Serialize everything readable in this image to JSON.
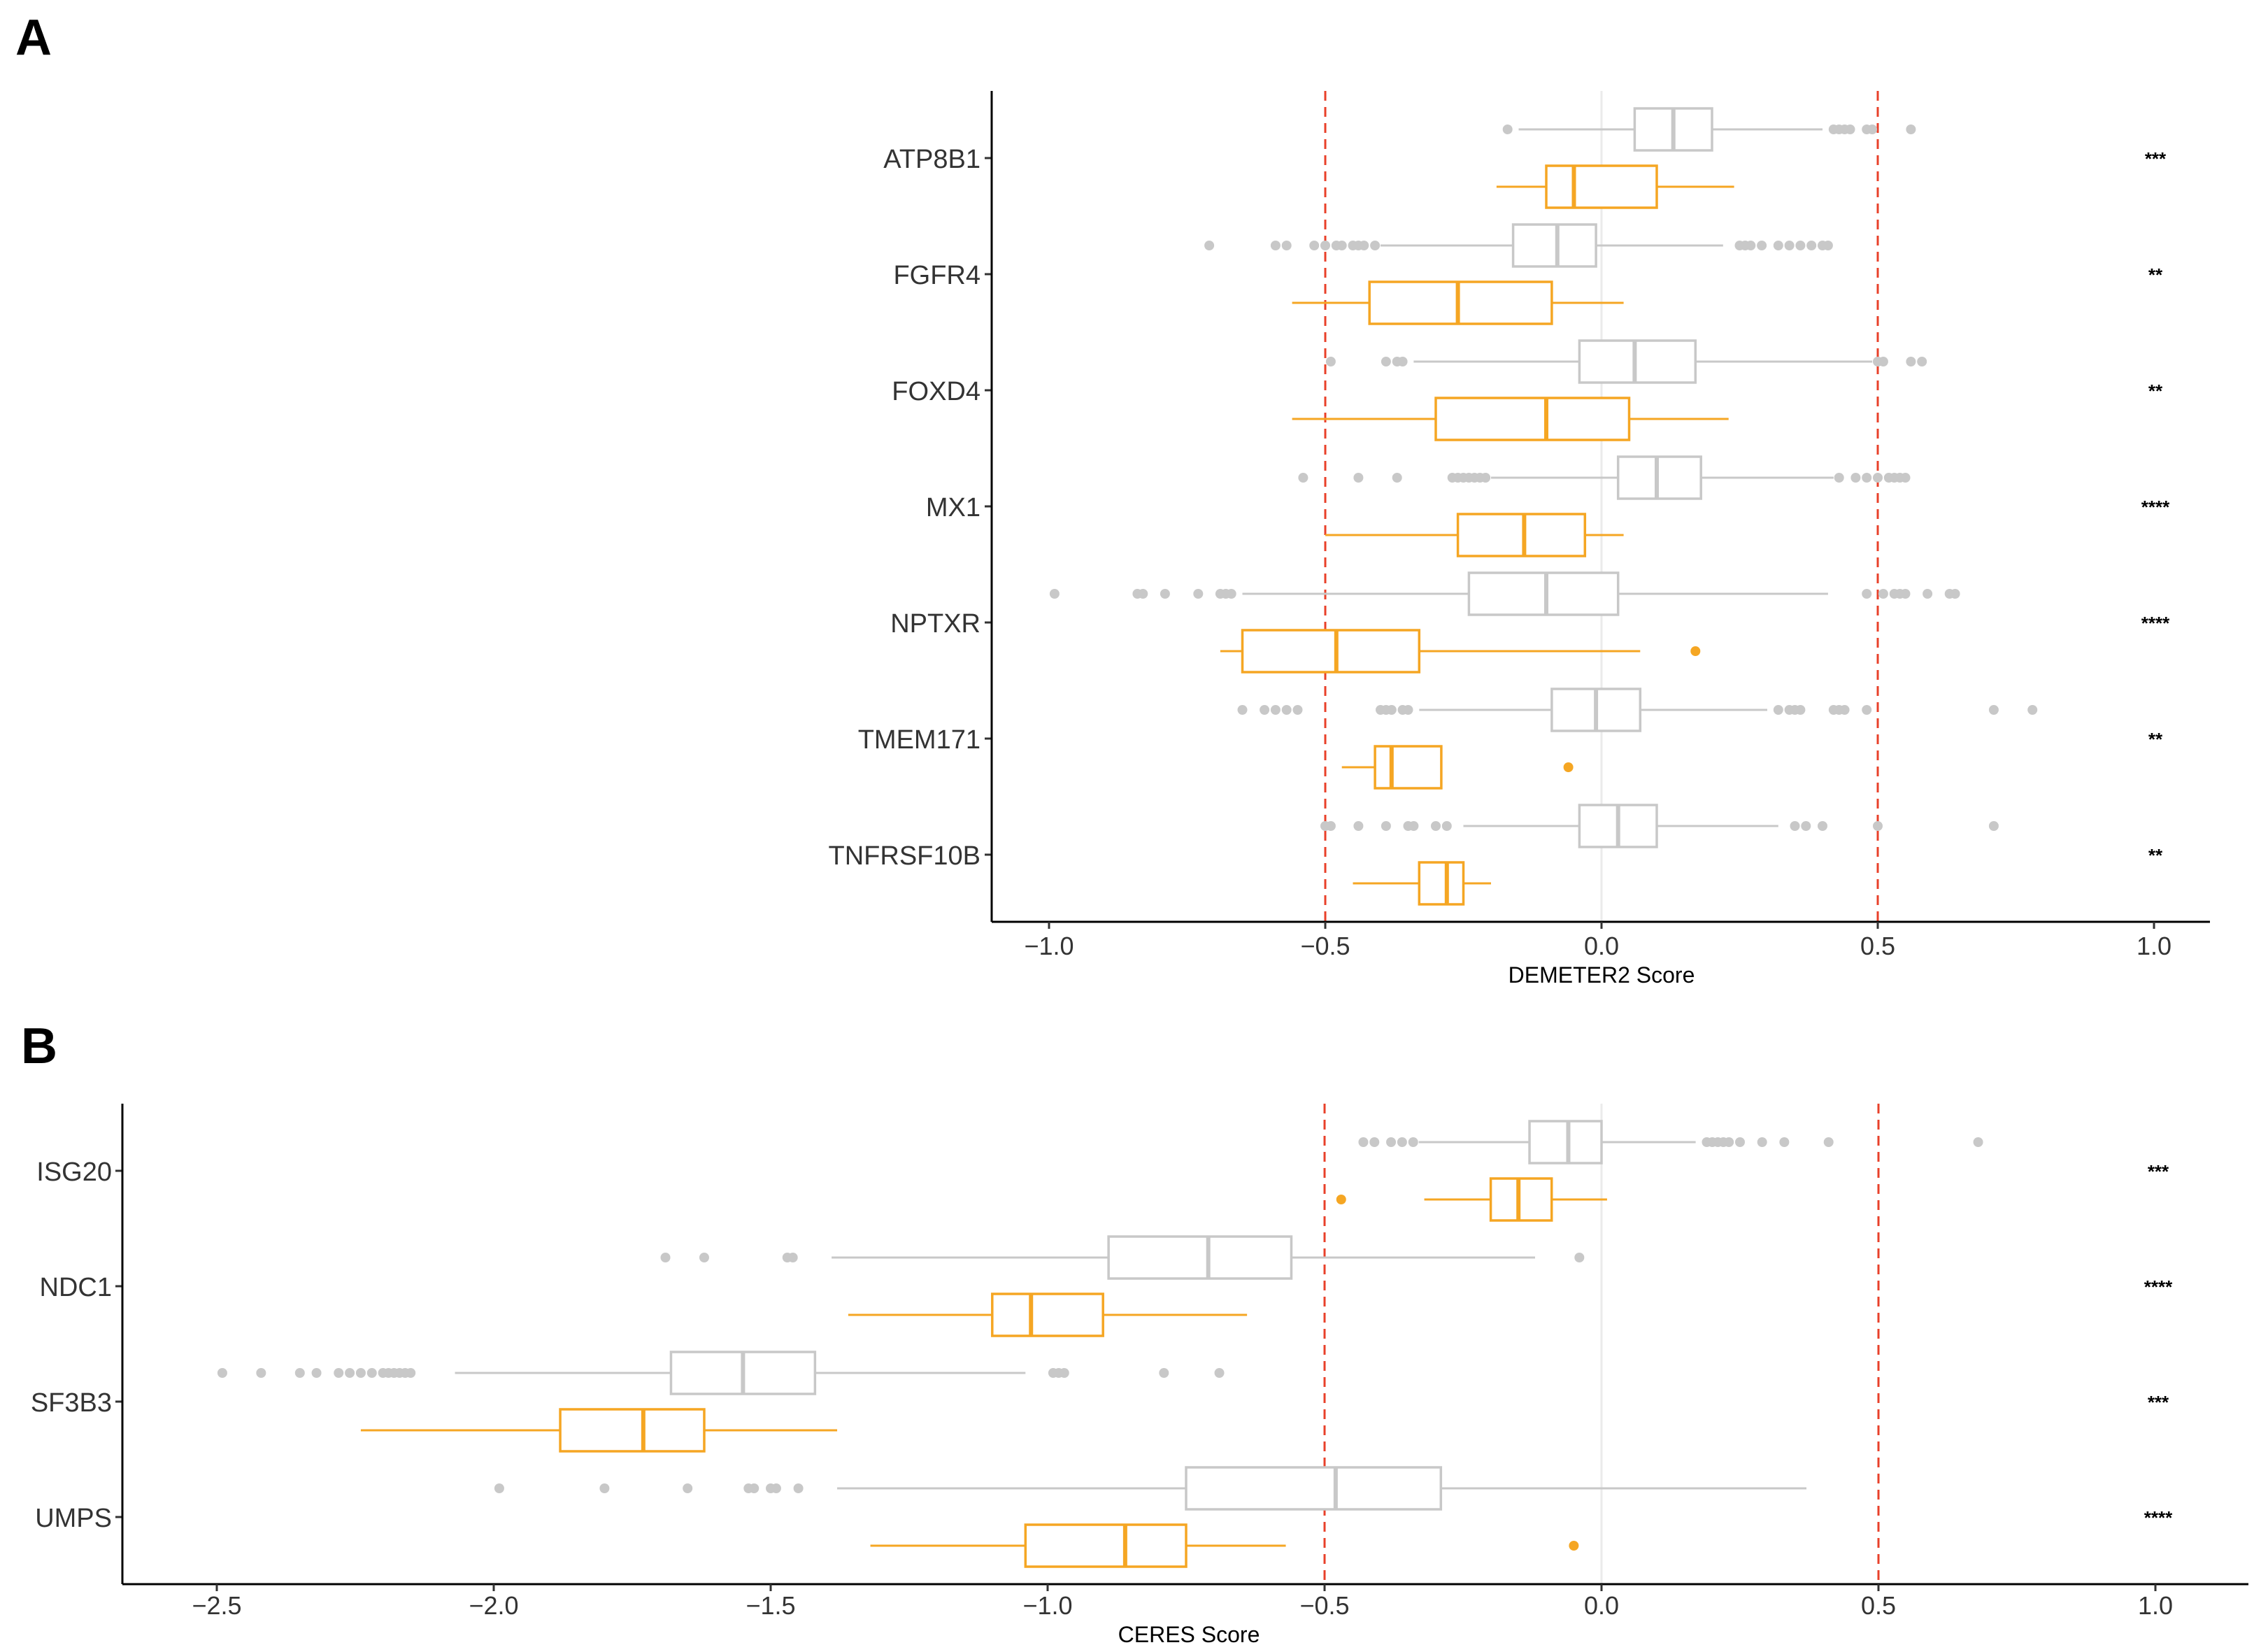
{
  "colors": {
    "grey": "#c8c8c8",
    "orange": "#f5a623",
    "threshold": "#e8402a",
    "zeroline": "#ebebeb",
    "axis": "#000000"
  },
  "chart_data": [
    {
      "panel": "A",
      "type": "boxplot",
      "xlabel": "DEMETER2 Score",
      "xlim": [
        -1.1,
        1.1
      ],
      "xticks": [
        -1.0,
        -0.5,
        0.0,
        0.5,
        1.0
      ],
      "xtick_labels": [
        "−1.0",
        "−0.5",
        "0.0",
        "0.5",
        "1.0"
      ],
      "thresholds": [
        -0.5,
        0.5
      ],
      "series": [
        {
          "name": "grey"
        },
        {
          "name": "orange"
        }
      ],
      "genes": [
        {
          "name": "ATP8B1",
          "sig": "***",
          "grey": {
            "wlo": -0.15,
            "q1": 0.06,
            "med": 0.13,
            "q3": 0.2,
            "whi": 0.4,
            "out": [
              -0.17,
              0.42,
              0.43,
              0.44,
              0.45,
              0.48,
              0.49,
              0.56
            ]
          },
          "orange": {
            "wlo": -0.19,
            "q1": -0.1,
            "med": -0.05,
            "q3": 0.1,
            "whi": 0.24,
            "out": []
          }
        },
        {
          "name": "FGFR4",
          "sig": "**",
          "grey": {
            "wlo": -0.4,
            "q1": -0.16,
            "med": -0.08,
            "q3": -0.01,
            "whi": 0.22,
            "out": [
              -0.71,
              -0.59,
              -0.57,
              -0.52,
              -0.5,
              -0.48,
              -0.47,
              -0.45,
              -0.44,
              -0.43,
              -0.41,
              0.25,
              0.26,
              0.27,
              0.29,
              0.32,
              0.34,
              0.36,
              0.38,
              0.4,
              0.41
            ]
          },
          "orange": {
            "wlo": -0.56,
            "q1": -0.42,
            "med": -0.26,
            "q3": -0.09,
            "whi": 0.04,
            "out": []
          }
        },
        {
          "name": "FOXD4",
          "sig": "**",
          "grey": {
            "wlo": -0.34,
            "q1": -0.04,
            "med": 0.06,
            "q3": 0.17,
            "whi": 0.49,
            "out": [
              -0.49,
              -0.39,
              -0.37,
              -0.36,
              0.5,
              0.51,
              0.56,
              0.58
            ]
          },
          "orange": {
            "wlo": -0.56,
            "q1": -0.3,
            "med": -0.1,
            "q3": 0.05,
            "whi": 0.23,
            "out": []
          }
        },
        {
          "name": "MX1",
          "sig": "****",
          "grey": {
            "wlo": -0.2,
            "q1": 0.03,
            "med": 0.1,
            "q3": 0.18,
            "whi": 0.42,
            "out": [
              -0.54,
              -0.44,
              -0.37,
              -0.27,
              -0.26,
              -0.25,
              -0.24,
              -0.23,
              -0.22,
              -0.21,
              0.43,
              0.46,
              0.48,
              0.5,
              0.52,
              0.53,
              0.54,
              0.55
            ]
          },
          "orange": {
            "wlo": -0.5,
            "q1": -0.26,
            "med": -0.14,
            "q3": -0.03,
            "whi": 0.04,
            "out": []
          }
        },
        {
          "name": "NPTXR",
          "sig": "****",
          "grey": {
            "wlo": -0.65,
            "q1": -0.24,
            "med": -0.1,
            "q3": 0.03,
            "whi": 0.41,
            "out": [
              -0.99,
              -0.84,
              -0.83,
              -0.79,
              -0.73,
              -0.69,
              -0.68,
              -0.67,
              0.48,
              0.51,
              0.53,
              0.54,
              0.55,
              0.59,
              0.63,
              0.64
            ]
          },
          "orange": {
            "wlo": -0.69,
            "q1": -0.65,
            "med": -0.48,
            "q3": -0.33,
            "whi": 0.07,
            "out": [
              0.17
            ]
          }
        },
        {
          "name": "TMEM171",
          "sig": "**",
          "grey": {
            "wlo": -0.33,
            "q1": -0.09,
            "med": -0.01,
            "q3": 0.07,
            "whi": 0.3,
            "out": [
              -0.65,
              -0.61,
              -0.59,
              -0.57,
              -0.55,
              -0.4,
              -0.39,
              -0.38,
              -0.36,
              -0.35,
              0.32,
              0.34,
              0.35,
              0.36,
              0.42,
              0.43,
              0.44,
              0.48,
              0.71,
              0.78
            ]
          },
          "orange": {
            "wlo": -0.47,
            "q1": -0.41,
            "med": -0.38,
            "q3": -0.29,
            "whi": -0.29,
            "out": [
              -0.06
            ]
          }
        },
        {
          "name": "TNFRSF10B",
          "sig": "**",
          "grey": {
            "wlo": -0.25,
            "q1": -0.04,
            "med": 0.03,
            "q3": 0.1,
            "whi": 0.32,
            "out": [
              -0.5,
              -0.49,
              -0.44,
              -0.39,
              -0.35,
              -0.34,
              -0.3,
              -0.28,
              0.35,
              0.37,
              0.4,
              0.5,
              0.71
            ]
          },
          "orange": {
            "wlo": -0.45,
            "q1": -0.33,
            "med": -0.28,
            "q3": -0.25,
            "whi": -0.2,
            "out": []
          }
        }
      ]
    },
    {
      "panel": "B",
      "type": "boxplot",
      "xlabel": "CERES Score",
      "xlim": [
        -2.7,
        1.15
      ],
      "xticks": [
        -2.5,
        -2.0,
        -1.5,
        -1.0,
        -0.5,
        0.0,
        0.5,
        1.0
      ],
      "xtick_labels": [
        "−2.5",
        "−2.0",
        "−1.5",
        "−1.0",
        "−0.5",
        "0.0",
        "0.5",
        "1.0"
      ],
      "thresholds": [
        -0.5,
        0.5
      ],
      "series": [
        {
          "name": "grey"
        },
        {
          "name": "orange"
        }
      ],
      "genes": [
        {
          "name": "ISG20",
          "sig": "***",
          "grey": {
            "wlo": -0.33,
            "q1": -0.13,
            "med": -0.06,
            "q3": 0.0,
            "whi": 0.17,
            "out": [
              -0.43,
              -0.41,
              -0.38,
              -0.36,
              -0.34,
              0.19,
              0.2,
              0.21,
              0.22,
              0.23,
              0.25,
              0.29,
              0.33,
              0.41,
              0.68
            ]
          },
          "orange": {
            "wlo": -0.32,
            "q1": -0.2,
            "med": -0.15,
            "q3": -0.09,
            "whi": 0.01,
            "out": [
              -0.47
            ]
          }
        },
        {
          "name": "NDC1",
          "sig": "****",
          "grey": {
            "wlo": -1.39,
            "q1": -0.89,
            "med": -0.71,
            "q3": -0.56,
            "whi": -0.12,
            "out": [
              -1.69,
              -1.62,
              -1.47,
              -1.46,
              -0.04
            ]
          },
          "orange": {
            "wlo": -1.36,
            "q1": -1.1,
            "med": -1.03,
            "q3": -0.9,
            "whi": -0.64,
            "out": []
          }
        },
        {
          "name": "SF3B3",
          "sig": "***",
          "grey": {
            "wlo": -2.07,
            "q1": -1.68,
            "med": -1.55,
            "q3": -1.42,
            "whi": -1.04,
            "out": [
              -2.49,
              -2.42,
              -2.35,
              -2.32,
              -2.28,
              -2.26,
              -2.24,
              -2.22,
              -2.2,
              -2.19,
              -2.18,
              -2.17,
              -2.16,
              -2.15,
              -0.99,
              -0.98,
              -0.97,
              -0.79,
              -0.69
            ]
          },
          "orange": {
            "wlo": -2.24,
            "q1": -1.88,
            "med": -1.73,
            "q3": -1.62,
            "whi": -1.38,
            "out": []
          }
        },
        {
          "name": "UMPS",
          "sig": "****",
          "grey": {
            "wlo": -1.38,
            "q1": -0.75,
            "med": -0.48,
            "q3": -0.29,
            "whi": 0.37,
            "out": [
              -1.99,
              -1.8,
              -1.65,
              -1.54,
              -1.53,
              -1.5,
              -1.49,
              -1.45
            ]
          },
          "orange": {
            "wlo": -1.32,
            "q1": -1.04,
            "med": -0.86,
            "q3": -0.75,
            "whi": -0.57,
            "out": [
              -0.05
            ]
          }
        }
      ]
    }
  ]
}
